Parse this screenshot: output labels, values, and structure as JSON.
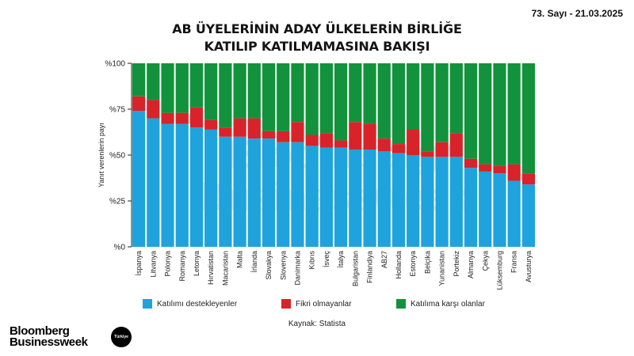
{
  "header": {
    "issue": "73. Sayı - 21.03.2025",
    "title_line1": "AB ÜYELERİNİN ADAY ÜLKELERİN BİRLİĞE",
    "title_line2": "KATILIP KATILMAMASINA BAKIŞI"
  },
  "colors": {
    "support": "#1ea3dc",
    "no_opinion": "#d8232a",
    "oppose": "#12923c",
    "axis": "#222222",
    "watermark": "#ececec"
  },
  "watermark": {
    "line1": "Bloomberg",
    "line2": "Businessweek"
  },
  "chart_data": {
    "type": "bar",
    "stacked": true,
    "title": "AB ÜYELERİNİN ADAY ÜLKELERİN BİRLİĞE KATILIP KATILMAMASINA BAKIŞI",
    "ylabel": "Yanıt verenlerin payı",
    "xlabel": "",
    "ylim": [
      0,
      100
    ],
    "y_ticks": [
      0,
      25,
      50,
      75,
      100
    ],
    "y_tick_labels": [
      "%0",
      "%25",
      "%50",
      "%75",
      "%100"
    ],
    "categories": [
      "İspanya",
      "Litvanya",
      "Polonya",
      "Romanya",
      "Letonya",
      "Hırvatistan",
      "Macaristan",
      "Malta",
      "İrlanda",
      "Slovakya",
      "Slovenya",
      "Danimarka",
      "Kıbrıs",
      "İsveç",
      "İtalya",
      "Bulgaristan",
      "Finlandiya",
      "AB27",
      "Hollanda",
      "Estonya",
      "Belçika",
      "Yunanistan",
      "Portekiz",
      "Almanya",
      "Çekya",
      "Lüksemburg",
      "Fransa",
      "Avusturya"
    ],
    "series": [
      {
        "name": "Katılımı destekleyenler",
        "values": [
          74,
          70,
          67,
          67,
          65,
          64,
          60,
          60,
          59,
          59,
          57,
          57,
          55,
          54,
          54,
          53,
          53,
          52,
          51,
          50,
          49,
          49,
          49,
          43,
          41,
          40,
          36,
          34
        ]
      },
      {
        "name": "Fikri olmayanlar",
        "values": [
          8,
          10,
          6,
          6,
          11,
          5,
          5,
          10,
          11,
          4,
          6,
          11,
          6,
          8,
          4,
          15,
          14,
          7,
          5,
          14,
          3,
          8,
          13,
          5,
          4,
          4,
          9,
          6
        ]
      },
      {
        "name": "Katılıma karşı olanlar",
        "values": [
          18,
          20,
          27,
          27,
          24,
          31,
          35,
          30,
          30,
          37,
          37,
          32,
          39,
          38,
          42,
          32,
          33,
          41,
          44,
          36,
          48,
          43,
          38,
          52,
          55,
          56,
          55,
          60
        ]
      }
    ],
    "legend_position": "bottom"
  },
  "footer": {
    "source": "Kaynak: Statista",
    "logo_line1": "Bloomberg",
    "logo_line2": "Businessweek",
    "badge": "Türkiye"
  }
}
